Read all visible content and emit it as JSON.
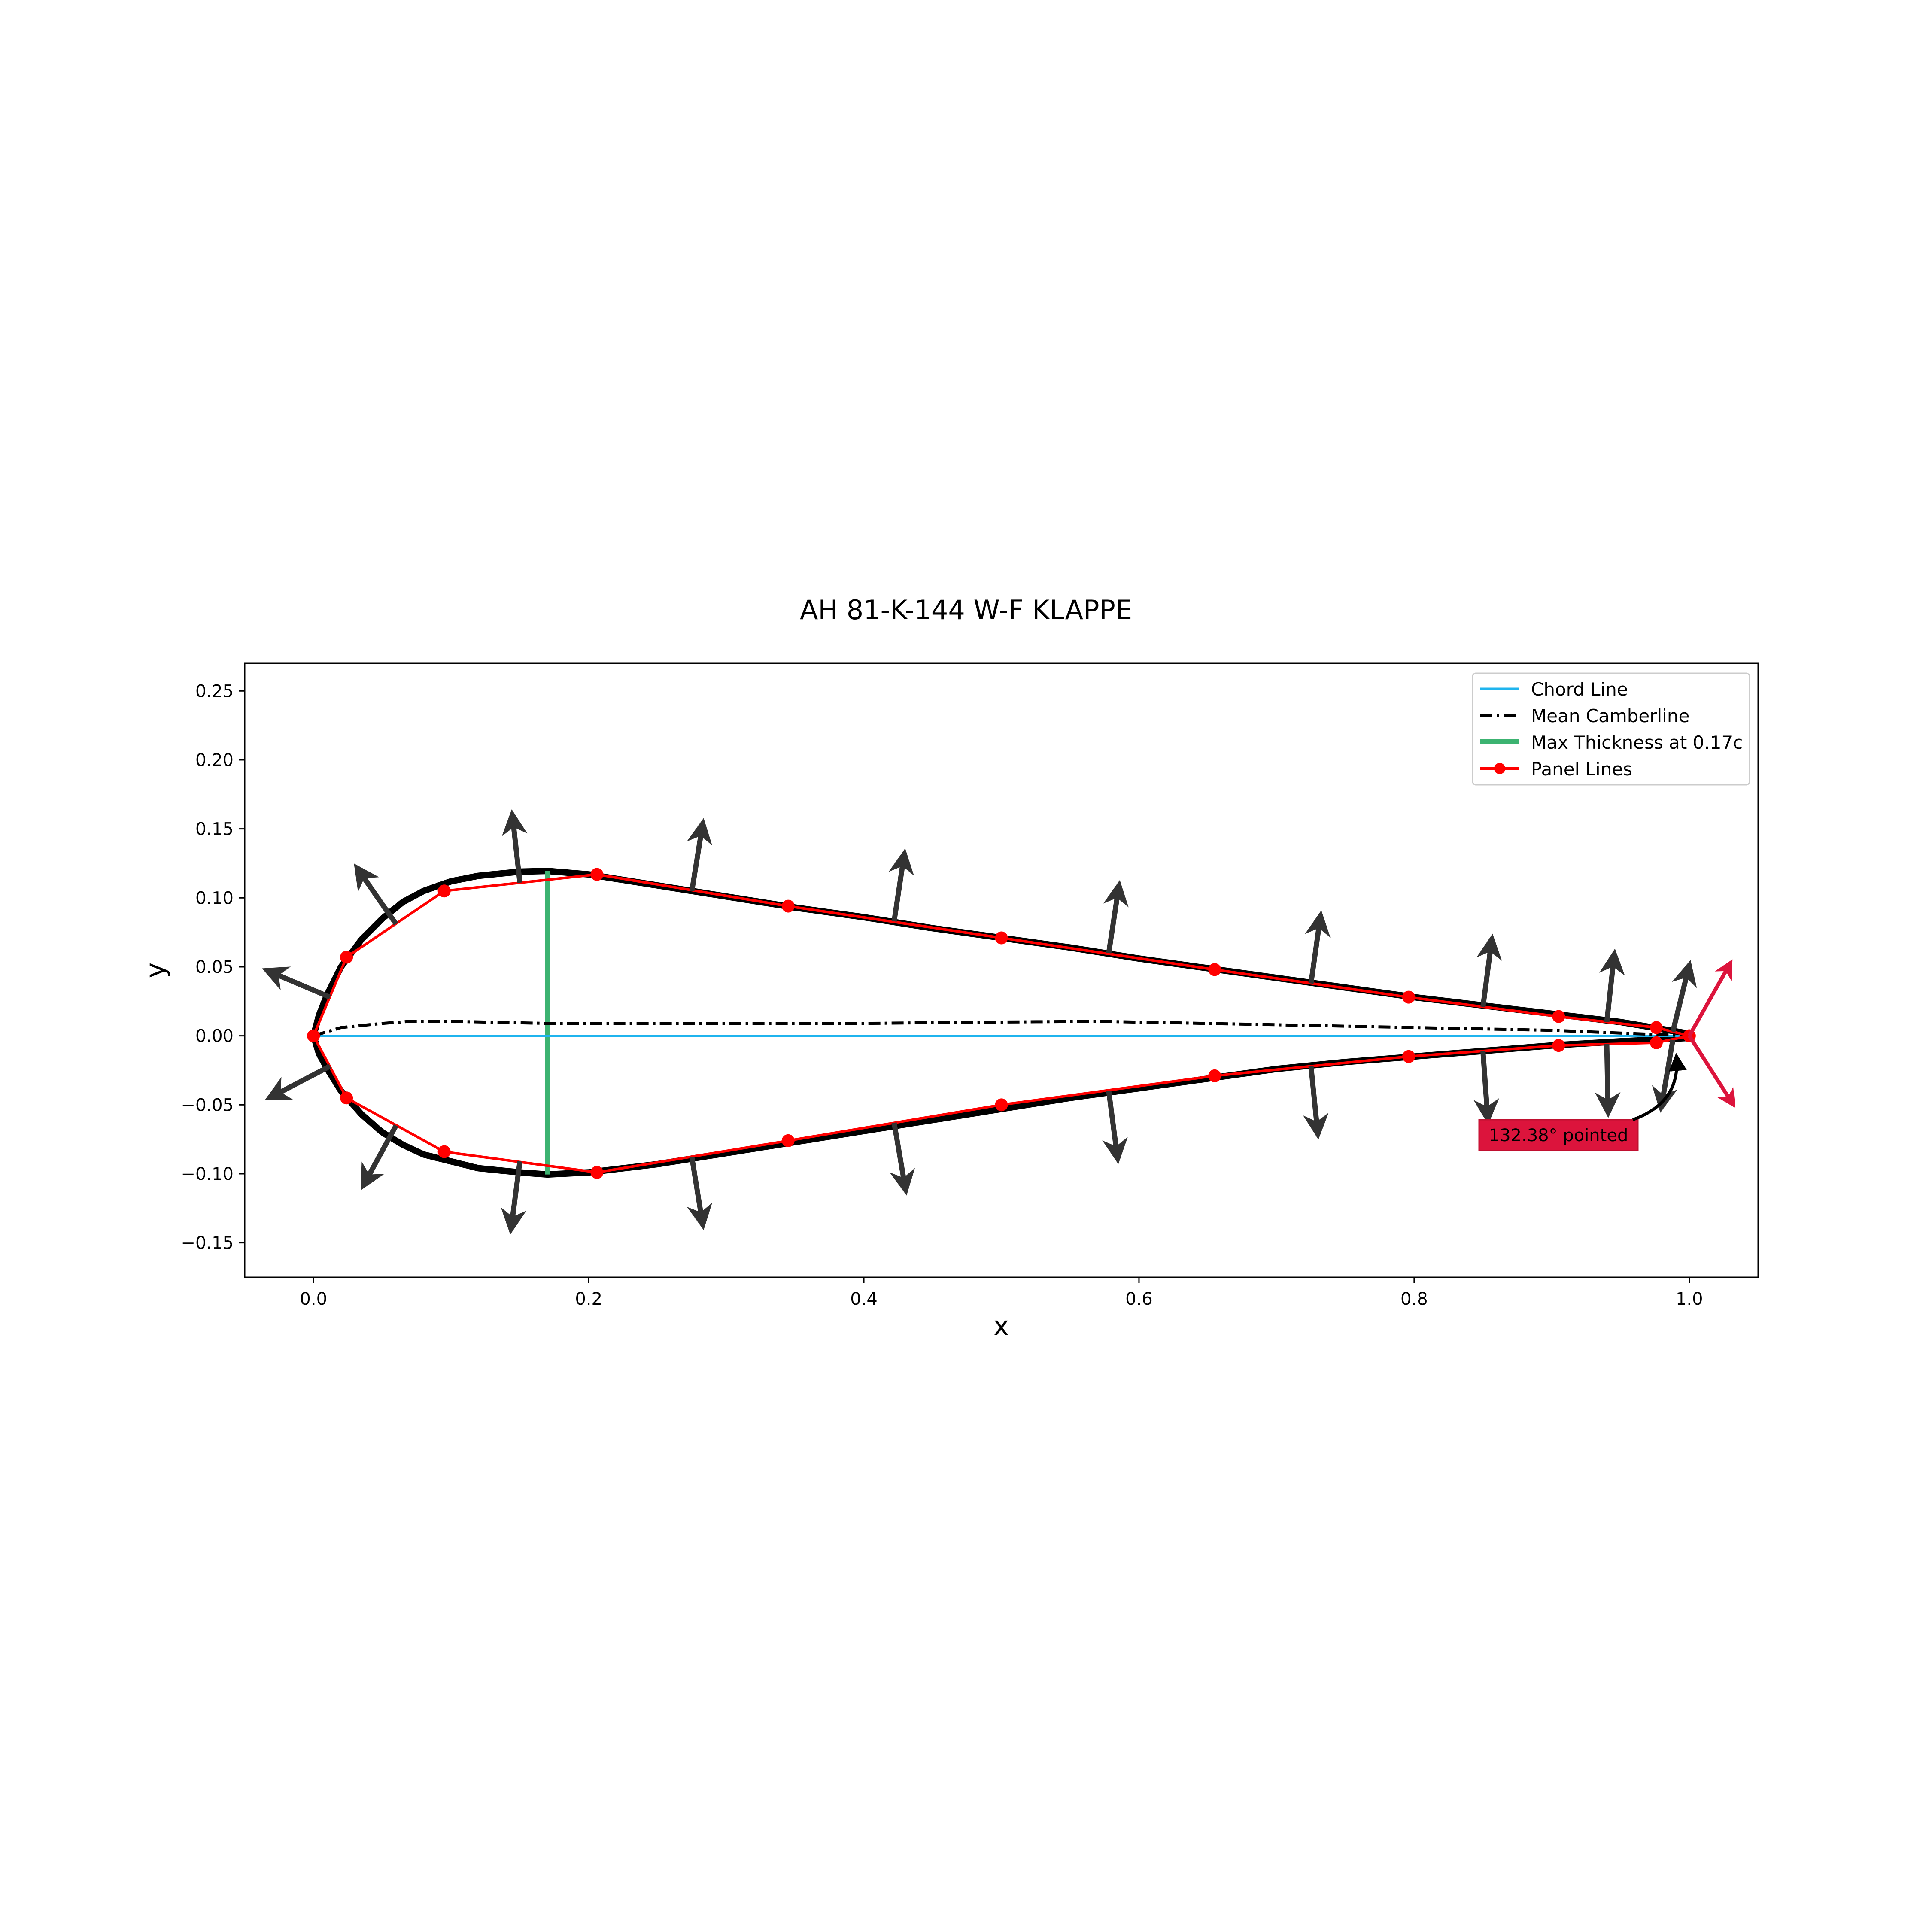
{
  "chart_data": {
    "type": "line",
    "title": "AH 81-K-144 W-F KLAPPE",
    "xlabel": "x",
    "ylabel": "y",
    "xlim": [
      -0.05,
      1.05
    ],
    "ylim": [
      -0.175,
      0.27
    ],
    "xticks": [
      0.0,
      0.2,
      0.4,
      0.6,
      0.8,
      1.0
    ],
    "xtick_labels": [
      "0.0",
      "0.2",
      "0.4",
      "0.6",
      "0.8",
      "1.0"
    ],
    "yticks": [
      0.25,
      0.2,
      0.15,
      0.1,
      0.05,
      0.0,
      -0.05,
      -0.1,
      -0.15
    ],
    "ytick_labels": [
      "0.25",
      "0.20",
      "0.15",
      "0.10",
      "0.05",
      "0.00",
      "−0.05",
      "−0.10",
      "−0.15"
    ],
    "grid": false,
    "legend_position": "top-right",
    "legend": [
      {
        "label": "Chord Line",
        "color": "#1fb4ee",
        "style": "solid"
      },
      {
        "label": "Mean Camberline",
        "color": "#000000",
        "style": "dashdot"
      },
      {
        "label": "Max Thickness at 0.17c",
        "color": "#3cb371",
        "style": "solid-thick"
      },
      {
        "label": "Panel Lines",
        "color": "#ff0000",
        "style": "solid-marker"
      }
    ],
    "series": [
      {
        "name": "Chord Line",
        "color": "#1fb4ee",
        "x": [
          0.0,
          1.0
        ],
        "y": [
          0.0,
          0.0
        ]
      },
      {
        "name": "Mean Camberline",
        "color": "#000000",
        "x": [
          0.0,
          0.02,
          0.05,
          0.07,
          0.1,
          0.17,
          0.3,
          0.4,
          0.5,
          0.57,
          0.7,
          0.8,
          0.9,
          0.95,
          1.0
        ],
        "y": [
          0.0,
          0.006,
          0.009,
          0.0105,
          0.0105,
          0.009,
          0.009,
          0.009,
          0.01,
          0.0105,
          0.008,
          0.006,
          0.004,
          0.002,
          0.0
        ]
      },
      {
        "name": "Max Thickness at 0.17c",
        "color": "#3cb371",
        "x": [
          0.17,
          0.17
        ],
        "y": [
          -0.1005,
          0.1195
        ]
      },
      {
        "name": "Panel Lines",
        "color": "#ff0000",
        "x": [
          1.0,
          0.976,
          0.905,
          0.796,
          0.655,
          0.5,
          0.345,
          0.206,
          0.095,
          0.024,
          0.0,
          0.024,
          0.095,
          0.206,
          0.345,
          0.5,
          0.655,
          0.796,
          0.905,
          0.976,
          1.0
        ],
        "y": [
          0.0,
          0.006,
          0.014,
          0.028,
          0.048,
          0.071,
          0.094,
          0.117,
          0.105,
          0.057,
          0.0,
          -0.045,
          -0.084,
          -0.099,
          -0.076,
          -0.05,
          -0.029,
          -0.015,
          -0.007,
          -0.005,
          0.0
        ]
      }
    ],
    "airfoil_surface": {
      "color": "#000000",
      "x": [
        1.0,
        0.95,
        0.9,
        0.85,
        0.8,
        0.75,
        0.7,
        0.65,
        0.6,
        0.55,
        0.5,
        0.45,
        0.4,
        0.35,
        0.3,
        0.25,
        0.2,
        0.17,
        0.15,
        0.12,
        0.1,
        0.08,
        0.065,
        0.05,
        0.035,
        0.02,
        0.01,
        0.004,
        0.0,
        0.004,
        0.01,
        0.02,
        0.035,
        0.05,
        0.065,
        0.08,
        0.1,
        0.12,
        0.15,
        0.17,
        0.2,
        0.25,
        0.3,
        0.35,
        0.4,
        0.45,
        0.5,
        0.55,
        0.6,
        0.65,
        0.7,
        0.75,
        0.8,
        0.85,
        0.9,
        0.95,
        1.0
      ],
      "y": [
        0.0015,
        0.01,
        0.016,
        0.022,
        0.028,
        0.035,
        0.042,
        0.049,
        0.056,
        0.064,
        0.071,
        0.078,
        0.086,
        0.093,
        0.101,
        0.109,
        0.117,
        0.1195,
        0.119,
        0.116,
        0.112,
        0.105,
        0.097,
        0.085,
        0.07,
        0.05,
        0.03,
        0.015,
        0.0,
        -0.013,
        -0.024,
        -0.04,
        -0.057,
        -0.07,
        -0.079,
        -0.086,
        -0.091,
        -0.096,
        -0.099,
        -0.1005,
        -0.099,
        -0.093,
        -0.085,
        -0.077,
        -0.069,
        -0.061,
        -0.053,
        -0.045,
        -0.038,
        -0.031,
        -0.024,
        -0.019,
        -0.015,
        -0.011,
        -0.007,
        -0.004,
        -0.0015
      ]
    },
    "panel_normals": {
      "color": "#333333",
      "items": [
        {
          "x": 0.988,
          "y": 0.003,
          "nx": 0.24,
          "ny": 0.97
        },
        {
          "x": 0.94,
          "y": 0.01,
          "nx": 0.11,
          "ny": 0.99
        },
        {
          "x": 0.85,
          "y": 0.021,
          "nx": 0.13,
          "ny": 0.99
        },
        {
          "x": 0.725,
          "y": 0.038,
          "nx": 0.14,
          "ny": 0.99
        },
        {
          "x": 0.578,
          "y": 0.06,
          "nx": 0.15,
          "ny": 0.99
        },
        {
          "x": 0.422,
          "y": 0.083,
          "nx": 0.15,
          "ny": 0.99
        },
        {
          "x": 0.275,
          "y": 0.105,
          "nx": 0.16,
          "ny": 0.99
        },
        {
          "x": 0.15,
          "y": 0.111,
          "nx": -0.11,
          "ny": 0.99
        },
        {
          "x": 0.06,
          "y": 0.081,
          "nx": -0.57,
          "ny": 0.82
        },
        {
          "x": 0.012,
          "y": 0.028,
          "nx": -0.92,
          "ny": 0.39
        },
        {
          "x": 0.012,
          "y": -0.022,
          "nx": -0.88,
          "ny": -0.46
        },
        {
          "x": 0.06,
          "y": -0.065,
          "nx": -0.48,
          "ny": -0.88
        },
        {
          "x": 0.15,
          "y": -0.091,
          "nx": -0.13,
          "ny": -0.99
        },
        {
          "x": 0.275,
          "y": -0.088,
          "nx": 0.16,
          "ny": -0.99
        },
        {
          "x": 0.422,
          "y": -0.063,
          "nx": 0.17,
          "ny": -0.99
        },
        {
          "x": 0.578,
          "y": -0.04,
          "nx": 0.13,
          "ny": -0.99
        },
        {
          "x": 0.725,
          "y": -0.022,
          "nx": 0.1,
          "ny": -0.99
        },
        {
          "x": 0.85,
          "y": -0.011,
          "nx": 0.07,
          "ny": -0.99
        },
        {
          "x": 0.94,
          "y": -0.006,
          "nx": 0.02,
          "ny": -0.99
        },
        {
          "x": 0.988,
          "y": -0.003,
          "nx": -0.17,
          "ny": -0.99
        }
      ]
    },
    "trailing_edge": {
      "annotation": "132.38° pointed",
      "color": "#dc143c",
      "x": 1.0,
      "y": 0.0,
      "vector_up": {
        "dx": 0.03,
        "dy": 0.053
      },
      "vector_down": {
        "dx": 0.032,
        "dy": -0.05
      }
    }
  }
}
